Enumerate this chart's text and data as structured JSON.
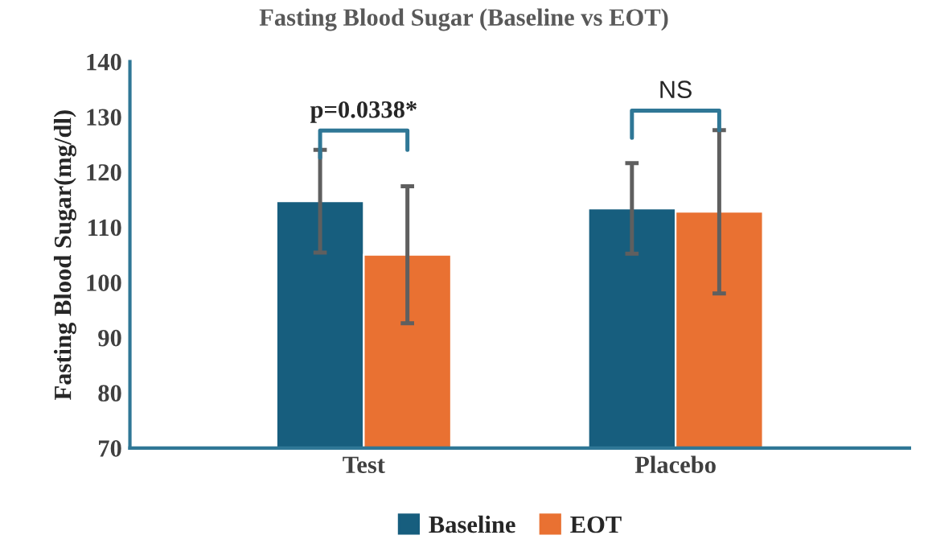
{
  "chart_data": {
    "type": "bar",
    "title": "Fasting Blood Sugar (Baseline vs EOT)",
    "ylabel": "Fasting Blood Sugar(mg/dl)",
    "categories": [
      "Test",
      "Placebo"
    ],
    "series": [
      {
        "name": "Baseline",
        "color": "#175e7e",
        "values": [
          114.7,
          113.4
        ],
        "errors": [
          9.3,
          8.2
        ]
      },
      {
        "name": "EOT",
        "color": "#e97132",
        "values": [
          105.0,
          112.8
        ],
        "errors": [
          12.4,
          14.8
        ]
      }
    ],
    "ylim": [
      70,
      140
    ],
    "yticks": [
      70,
      80,
      90,
      100,
      110,
      120,
      130,
      140
    ],
    "annotations": [
      "p=0.0338*",
      "NS"
    ],
    "legend": "bottom",
    "grid": false
  }
}
